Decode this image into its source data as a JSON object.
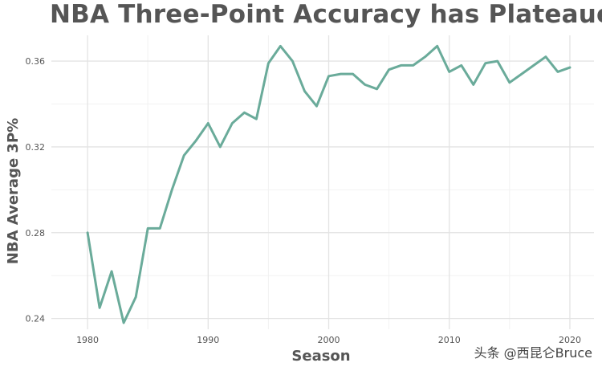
{
  "chart_data": {
    "type": "line",
    "title": "NBA Three-Point Accuracy has Plateaued",
    "xlabel": "Season",
    "ylabel": "NBA Average 3P%",
    "xlim": [
      1977,
      2022
    ],
    "ylim": [
      0.235,
      0.372
    ],
    "x_ticks": [
      1980,
      1990,
      2000,
      2010,
      2020
    ],
    "y_ticks": [
      0.24,
      0.28,
      0.32,
      0.36
    ],
    "x_tick_labels": [
      "1980",
      "1990",
      "2000",
      "2010",
      "2020"
    ],
    "y_tick_labels": [
      "0.24",
      "0.28",
      "0.32",
      "0.36"
    ],
    "grid": true,
    "line_color": "#6aab9a",
    "series": [
      {
        "x": [
          1980,
          1981,
          1982,
          1983,
          1984,
          1985,
          1986,
          1987,
          1988,
          1989,
          1990,
          1991,
          1992,
          1993,
          1994,
          1995,
          1996,
          1997,
          1998,
          1999,
          2000,
          2001,
          2002,
          2003,
          2004,
          2005,
          2006,
          2007,
          2008,
          2009,
          2010,
          2011,
          2012,
          2013,
          2014,
          2015,
          2016,
          2017,
          2018,
          2019,
          2020
        ],
        "values": [
          0.28,
          0.245,
          0.262,
          0.238,
          0.25,
          0.282,
          0.282,
          0.3,
          0.316,
          0.323,
          0.331,
          0.32,
          0.331,
          0.336,
          0.333,
          0.359,
          0.367,
          0.36,
          0.346,
          0.339,
          0.353,
          0.354,
          0.354,
          0.349,
          0.347,
          0.356,
          0.358,
          0.358,
          0.362,
          0.367,
          0.355,
          0.358,
          0.349,
          0.359,
          0.36,
          0.35,
          0.354,
          0.358,
          0.362,
          0.355,
          0.357
        ]
      }
    ]
  },
  "watermark": "头条 @西昆仑Bruce"
}
